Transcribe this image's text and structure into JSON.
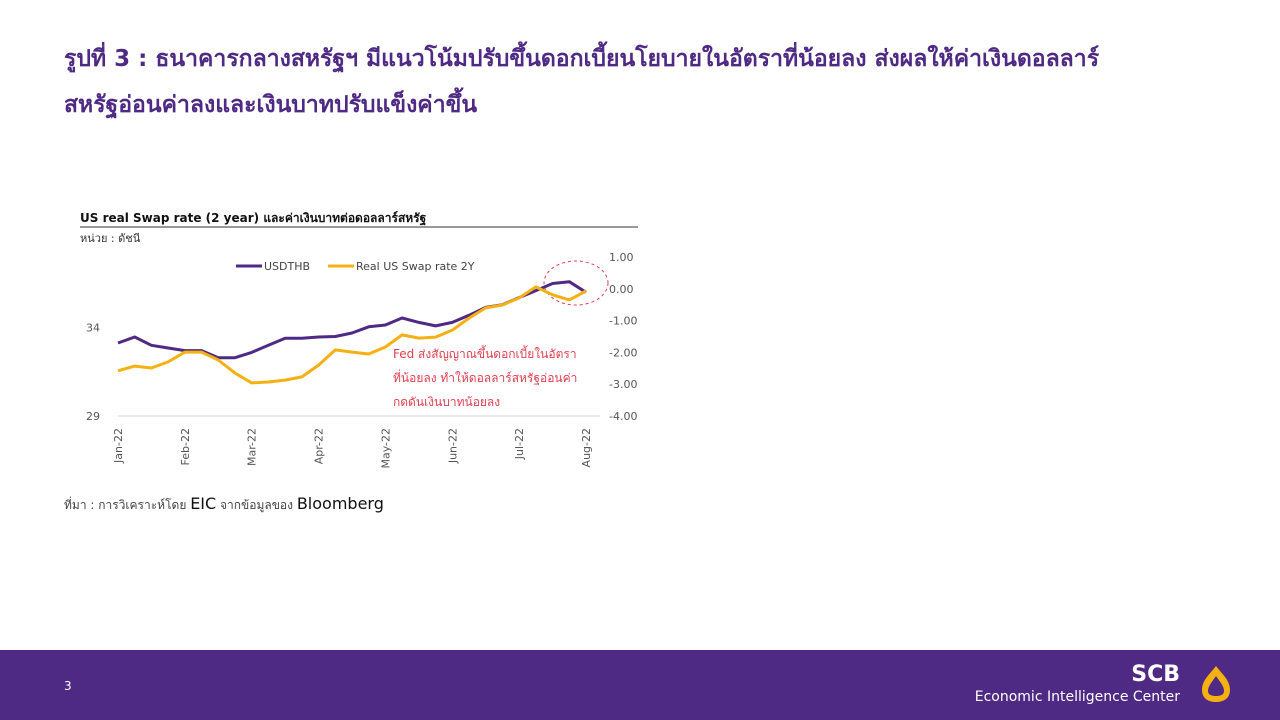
{
  "header": {
    "title": [
      "รูปที่ 3 : ธนาคารกลางสหรัฐฯ มีแนวโน้มปรับขึ้นดอกเบี้ยนโยบายในอัตราที่น้อยลง ส่งผลให้ค่าเงินดอลลาร์",
      "สหรัฐอ่อนค่าลงและเงินบาทปรับแข็งค่าขึ้น"
    ]
  },
  "chart_data": {
    "type": "line",
    "title": "US real Swap rate (2 year) และค่าเงินบาทต่อดอลลาร์สหรัฐ",
    "subtitle": "หน่วย : ดัชนี",
    "x": [
      "Jan-22",
      null,
      null,
      null,
      "Feb-22",
      null,
      null,
      null,
      "Mar-22",
      null,
      null,
      null,
      "Apr-22",
      null,
      null,
      null,
      "May-22",
      null,
      null,
      null,
      "Jun-22",
      null,
      null,
      null,
      "Jul-22",
      null,
      null,
      null,
      "Aug-22"
    ],
    "series": [
      {
        "name": "USDTHB",
        "color": "#4f2a84",
        "values": [
          33.13,
          33.47,
          33.0,
          32.85,
          32.7,
          32.7,
          32.3,
          32.3,
          32.6,
          33.0,
          33.4,
          33.4,
          33.47,
          33.5,
          33.7,
          34.05,
          34.15,
          34.55,
          34.3,
          34.1,
          34.3,
          34.7,
          35.15,
          35.3,
          35.7,
          36.1,
          36.5,
          36.6,
          36.0
        ]
      },
      {
        "name": "Real US Swap rate 2Y",
        "color": "#f5b014",
        "axis": "y2",
        "values": [
          -2.58,
          -2.43,
          -2.49,
          -2.3,
          -1.99,
          -1.99,
          -2.24,
          -2.65,
          -2.96,
          -2.93,
          -2.87,
          -2.77,
          -2.4,
          -1.92,
          -1.99,
          -2.05,
          -1.83,
          -1.45,
          -1.55,
          -1.52,
          -1.3,
          -0.92,
          -0.6,
          -0.51,
          -0.29,
          0.06,
          -0.19,
          -0.35,
          -0.07
        ]
      }
    ],
    "ylim": [
      29,
      38
    ],
    "yticks": [
      29,
      34
    ],
    "y2lim": [
      -4,
      1
    ],
    "y2ticks": [
      {
        "value": 1,
        "label": "1.00"
      },
      {
        "value": 0,
        "label": "0.00"
      },
      {
        "value": -1,
        "label": "-1.00"
      },
      {
        "value": -2,
        "label": "-2.00"
      },
      {
        "value": -3,
        "label": "-3.00"
      },
      {
        "value": -4,
        "label": "-4.00"
      }
    ],
    "legend": "top",
    "annotation": [
      "Fed ส่งสัญญาณขึ้นดอกเบี้ยในอัตรา",
      "ที่น้อยลง ทำให้ดอลลาร์สหรัฐอ่อนค่า",
      "กดดันเงินบาทน้อยลง"
    ]
  },
  "source": [
    "ที่มา : การวิเคราะห์โดย",
    "EIC",
    "จากข้อมูลของ",
    "Bloomberg"
  ],
  "footer": {
    "page": "3",
    "brand": "SCB",
    "unit": "Economic Intelligence Center"
  }
}
